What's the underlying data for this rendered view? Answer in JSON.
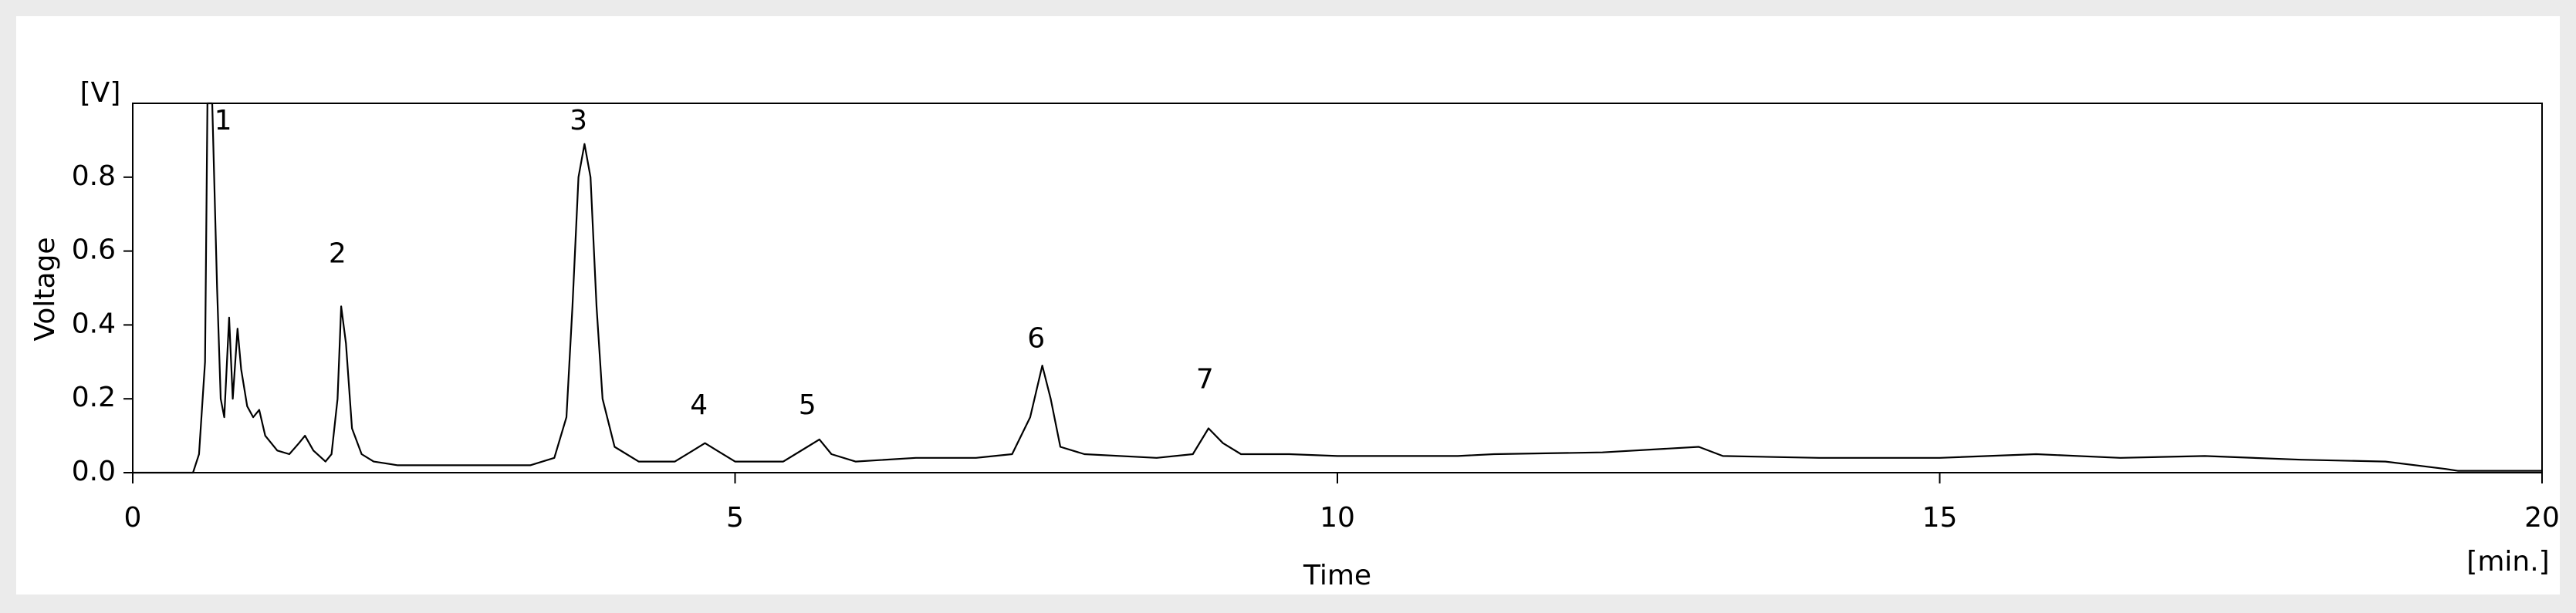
{
  "chart_data": {
    "type": "line",
    "y_unit_label": "[V]",
    "ylabel": "Voltage",
    "xlabel": "Time",
    "x_unit_label": "[min.]",
    "xlim": [
      0,
      20
    ],
    "xticks": [
      0,
      5,
      10,
      15,
      20
    ],
    "ylim": [
      0,
      1.0
    ],
    "yticks": [
      {
        "value": 0,
        "label": "0.0"
      },
      0.2,
      0.4,
      0.6,
      0.8
    ],
    "series": [
      {
        "color": "#000000",
        "x": [
          0,
          0.5,
          0.55,
          0.6,
          0.62,
          0.66,
          0.7,
          0.73,
          0.76,
          0.8,
          0.83,
          0.87,
          0.9,
          0.95,
          1.0,
          1.05,
          1.1,
          1.2,
          1.3,
          1.38,
          1.43,
          1.5,
          1.6,
          1.65,
          1.7,
          1.73,
          1.77,
          1.82,
          1.9,
          2.0,
          2.2,
          2.5,
          3.0,
          3.3,
          3.5,
          3.6,
          3.65,
          3.7,
          3.75,
          3.8,
          3.85,
          3.9,
          4.0,
          4.2,
          4.5,
          4.65,
          4.75,
          4.85,
          5.0,
          5.4,
          5.6,
          5.7,
          5.8,
          6.0,
          6.5,
          7.0,
          7.3,
          7.45,
          7.55,
          7.62,
          7.7,
          7.9,
          8.5,
          8.8,
          8.93,
          9.05,
          9.2,
          9.6,
          10,
          11,
          11.3,
          12.2,
          13,
          13.2,
          14,
          15,
          15.8,
          16.5,
          17.2,
          18,
          18.7,
          19.2,
          19.3,
          20
        ],
        "values": [
          0,
          0,
          0.05,
          0.3,
          1.0,
          1.0,
          0.5,
          0.2,
          0.15,
          0.42,
          0.2,
          0.39,
          0.28,
          0.18,
          0.15,
          0.17,
          0.1,
          0.06,
          0.05,
          0.08,
          0.1,
          0.06,
          0.03,
          0.05,
          0.2,
          0.45,
          0.35,
          0.12,
          0.05,
          0.03,
          0.02,
          0.02,
          0.02,
          0.02,
          0.04,
          0.15,
          0.45,
          0.8,
          0.89,
          0.8,
          0.45,
          0.2,
          0.07,
          0.03,
          0.03,
          0.06,
          0.08,
          0.06,
          0.03,
          0.03,
          0.07,
          0.09,
          0.05,
          0.03,
          0.04,
          0.04,
          0.05,
          0.15,
          0.29,
          0.2,
          0.07,
          0.05,
          0.04,
          0.05,
          0.12,
          0.08,
          0.05,
          0.05,
          0.045,
          0.045,
          0.05,
          0.055,
          0.07,
          0.045,
          0.04,
          0.04,
          0.05,
          0.04,
          0.045,
          0.035,
          0.03,
          0.01,
          0.005,
          0.005
        ]
      }
    ],
    "annotations": [
      {
        "text": "1",
        "x": 0.75,
        "y": 0.95
      },
      {
        "text": "2",
        "x": 1.7,
        "y": 0.59
      },
      {
        "text": "3",
        "x": 3.7,
        "y": 0.95
      },
      {
        "text": "4",
        "x": 4.7,
        "y": 0.18
      },
      {
        "text": "5",
        "x": 5.6,
        "y": 0.18
      },
      {
        "text": "6",
        "x": 7.5,
        "y": 0.36
      },
      {
        "text": "7",
        "x": 8.9,
        "y": 0.25
      }
    ]
  }
}
